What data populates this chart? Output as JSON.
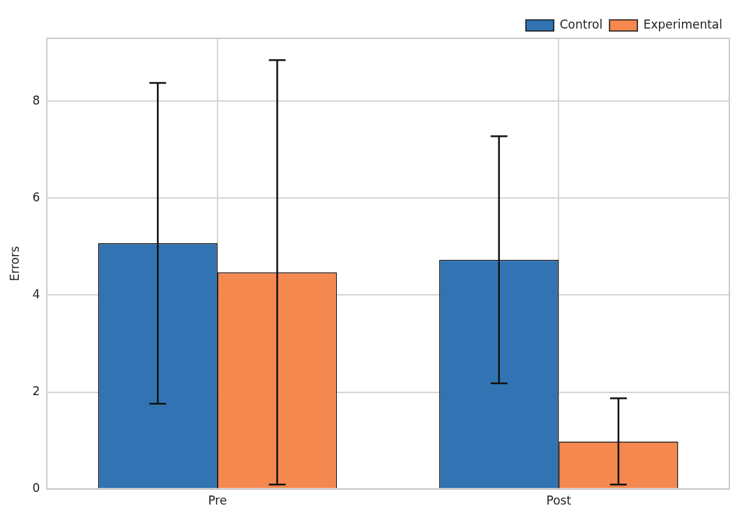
{
  "chart_data": {
    "type": "bar",
    "ylabel": "Errors",
    "categories": [
      "Pre",
      "Post"
    ],
    "series": [
      {
        "name": "Control",
        "color": "#3274b3",
        "values": [
          5.07,
          4.73
        ],
        "errors": [
          3.31,
          2.55
        ]
      },
      {
        "name": "Experimental",
        "color": "#f5884f",
        "values": [
          4.47,
          0.98
        ],
        "errors": [
          4.38,
          0.89
        ]
      }
    ],
    "ylim": [
      0,
      9.3
    ],
    "yticks": [
      0,
      2,
      4,
      6,
      8
    ],
    "grid": true,
    "legend": "top right"
  }
}
